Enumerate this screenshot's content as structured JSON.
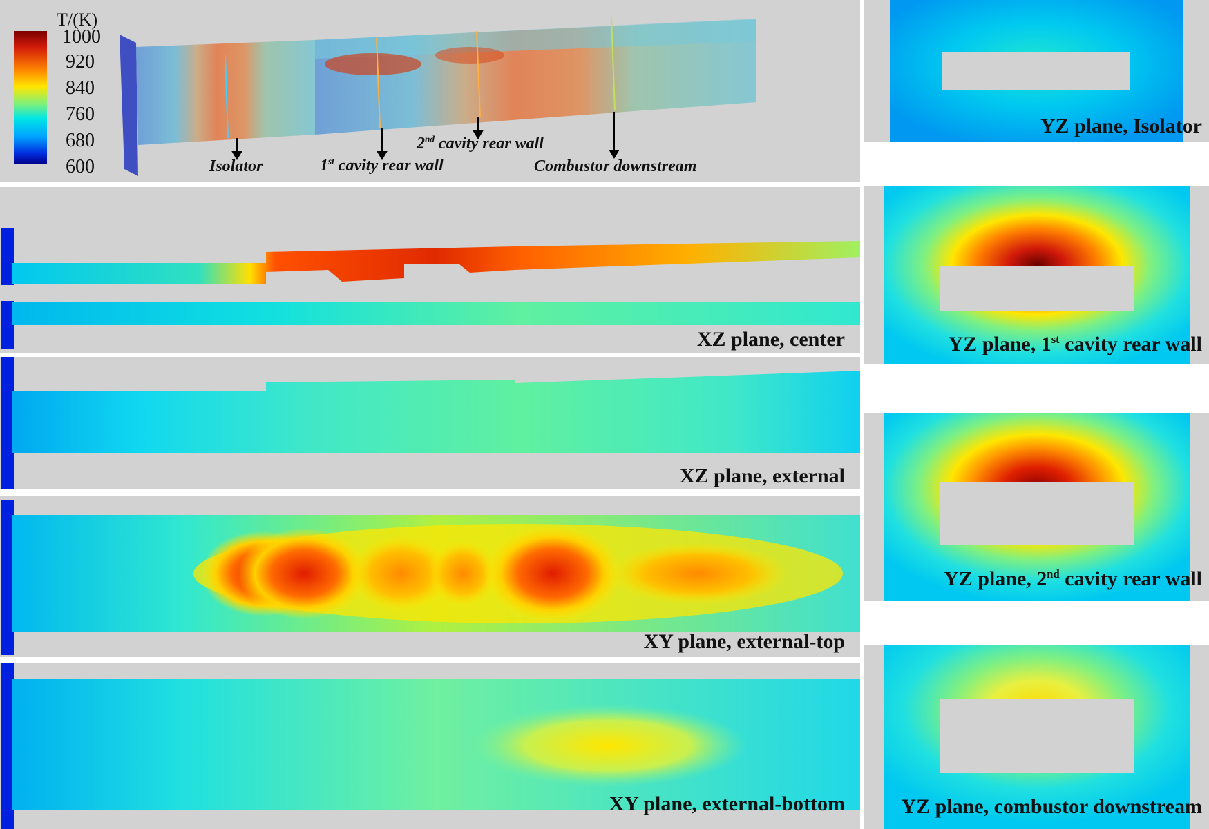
{
  "colorbar": {
    "title": "T/(K)",
    "ticks": [
      "1000",
      "920",
      "840",
      "760",
      "680",
      "600"
    ],
    "colors": [
      "#7a0000",
      "#d21a0a",
      "#ff7b00",
      "#ffe600",
      "#7ef07a",
      "#00e6e6",
      "#00a0ff",
      "#0030e0",
      "#000090"
    ]
  },
  "overview": {
    "annotations": {
      "isolator": "Isolator",
      "cavity1_sup": "st",
      "cavity1_num": "1",
      "cavity1_text": " cavity rear wall",
      "cavity2_num": "2",
      "cavity2_sup": "nd",
      "cavity2_text": " cavity rear wall",
      "downstream": "Combustor downstream"
    }
  },
  "panels": {
    "xz_center": "XZ plane, center",
    "xz_external": "XZ plane, external",
    "xy_top": "XY plane, external-top",
    "xy_bottom": "XY plane, external-bottom"
  },
  "yz": {
    "isolator": "YZ plane, Isolator",
    "cavity1_pre": "YZ plane, 1",
    "cavity1_sup": "st",
    "cavity1_post": " cavity rear wall",
    "cavity2_pre": "YZ plane, 2",
    "cavity2_sup": "nd",
    "cavity2_post": " cavity rear wall",
    "downstream": "YZ plane, combustor downstream"
  }
}
